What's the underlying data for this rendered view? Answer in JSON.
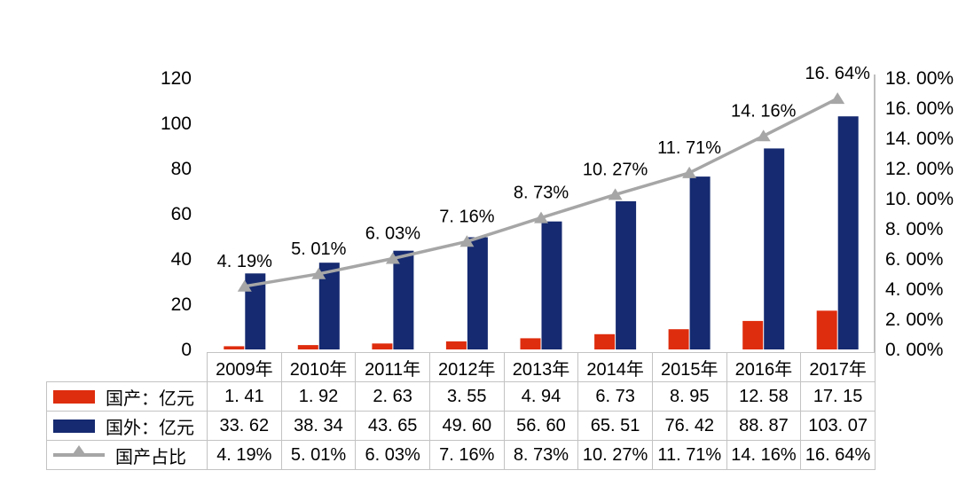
{
  "chart": {
    "left_axis_ticks": [
      "120",
      "100",
      "80",
      "60",
      "40",
      "20",
      "0"
    ],
    "right_axis_ticks": [
      "18. 00%",
      "16. 00%",
      "14. 00%",
      "12. 00%",
      "10. 00%",
      "8. 00%",
      "6. 00%",
      "4. 00%",
      "2. 00%",
      "0. 00%"
    ],
    "point_labels": [
      "4. 19%",
      "5. 01%",
      "6. 03%",
      "7. 16%",
      "8. 73%",
      "10. 27%",
      "11. 71%",
      "14. 16%",
      "16. 64%"
    ],
    "colors": {
      "domestic_bar": "#de2d0e",
      "foreign_bar": "#152a70",
      "share_line": "#a6a6a6",
      "axis_line": "#bfbfbf",
      "table_border": "#c3c3c3",
      "text": "#000000"
    }
  },
  "chart_data": {
    "type": "bar",
    "categories": [
      "2009年",
      "2010年",
      "2011年",
      "2012年",
      "2013年",
      "2014年",
      "2015年",
      "2016年",
      "2017年"
    ],
    "series": [
      {
        "name": "国产：亿元",
        "type": "bar",
        "axis": "left",
        "color": "#de2d0e",
        "values": [
          1.41,
          1.92,
          2.63,
          3.55,
          4.94,
          6.73,
          8.95,
          12.58,
          17.15
        ]
      },
      {
        "name": "国外：亿元",
        "type": "bar",
        "axis": "left",
        "color": "#152a70",
        "values": [
          33.62,
          38.34,
          43.65,
          49.6,
          56.6,
          65.51,
          76.42,
          88.87,
          103.07
        ]
      },
      {
        "name": "国产占比",
        "type": "line",
        "axis": "right",
        "color": "#a6a6a6",
        "values": [
          4.19,
          5.01,
          6.03,
          7.16,
          8.73,
          10.27,
          11.71,
          14.16,
          16.64
        ]
      }
    ],
    "title": "",
    "xlabel": "",
    "ylabel": "",
    "left_ylim": [
      0,
      120
    ],
    "right_ylim": [
      0,
      18
    ],
    "grid": false,
    "legend_position": "table-left"
  },
  "table": {
    "header_years": [
      "2009年",
      "2010年",
      "2011年",
      "2012年",
      "2013年",
      "2014年",
      "2015年",
      "2016年",
      "2017年"
    ],
    "rows": [
      {
        "swatch": "red-bar",
        "label": "国产：亿元",
        "values": [
          "1. 41",
          "1. 92",
          "2. 63",
          "3. 55",
          "4. 94",
          "6. 73",
          "8. 95",
          "12. 58",
          "17. 15"
        ]
      },
      {
        "swatch": "blue-bar",
        "label": "国外：亿元",
        "values": [
          "33. 62",
          "38. 34",
          "43. 65",
          "49. 60",
          "56. 60",
          "65. 51",
          "76. 42",
          "88. 87",
          "103. 07"
        ]
      },
      {
        "swatch": "gray-line",
        "label": "国产占比",
        "values": [
          "4. 19%",
          "5. 01%",
          "6. 03%",
          "7. 16%",
          "8. 73%",
          "10. 27%",
          "11. 71%",
          "14. 16%",
          "16. 64%"
        ]
      }
    ]
  }
}
